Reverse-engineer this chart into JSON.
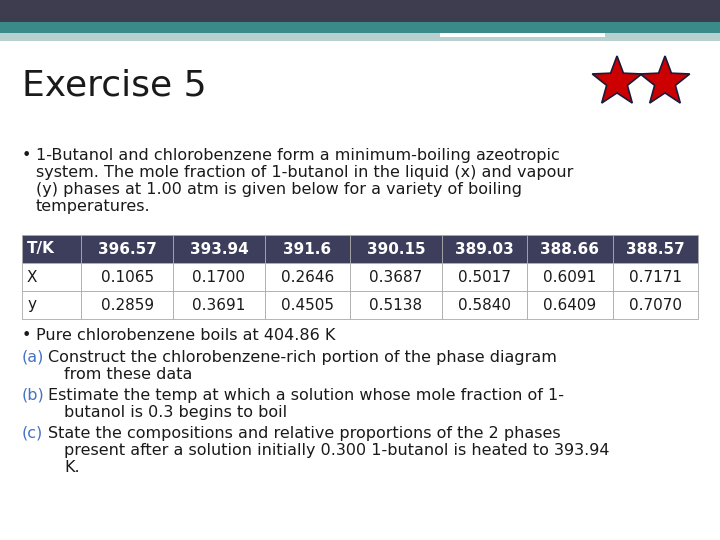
{
  "title": "Exercise 5",
  "background_color": "#ffffff",
  "header_bar_color1": "#3d3d4f",
  "header_bar_color2": "#3a8a8a",
  "header_bar_color3": "#b8d0d0",
  "bullet1_line1": "1-Butanol and chlorobenzene form a minimum-boiling azeotropic",
  "bullet1_line2": "system. The mole fraction of 1-butanol in the liquid (x) and vapour",
  "bullet1_line3": "(y) phases at 1.00 atm is given below for a variety of boiling",
  "bullet1_line4": "temperatures.",
  "table_header_bg": "#3d3d5c",
  "table_header_fg": "#ffffff",
  "table_row_bg": "#ffffff",
  "table_headers": [
    "T/K",
    "396.57",
    "393.94",
    "391.6",
    "390.15",
    "389.03",
    "388.66",
    "388.57"
  ],
  "table_row_x": [
    "X",
    "0.1065",
    "0.1700",
    "0.2646",
    "0.3687",
    "0.5017",
    "0.6091",
    "0.7171"
  ],
  "table_row_y": [
    "y",
    "0.2859",
    "0.3691",
    "0.4505",
    "0.5138",
    "0.5840",
    "0.6409",
    "0.7070"
  ],
  "bullet2": "Pure chlorobenzene boils at 404.86 K",
  "part_a_label": "(a)",
  "part_a_text1": "Construct the chlorobenzene-rich portion of the phase diagram",
  "part_a_text2": "from these data",
  "part_b_label": "(b)",
  "part_b_text1": "Estimate the temp at which a solution whose mole fraction of 1-",
  "part_b_text2": "butanol is 0.3 begins to boil",
  "part_c_label": "(c)",
  "part_c_text1": "State the compositions and relative proportions of the 2 phases",
  "part_c_text2": "present after a solution initially 0.300 1-butanol is heated to 393.94",
  "part_c_text3": "K.",
  "label_color": "#4472c4",
  "star_color": "#cc0000",
  "star_outline": "#1a1a3a",
  "title_fontsize": 26,
  "body_fontsize": 11.5,
  "table_fontsize": 11
}
